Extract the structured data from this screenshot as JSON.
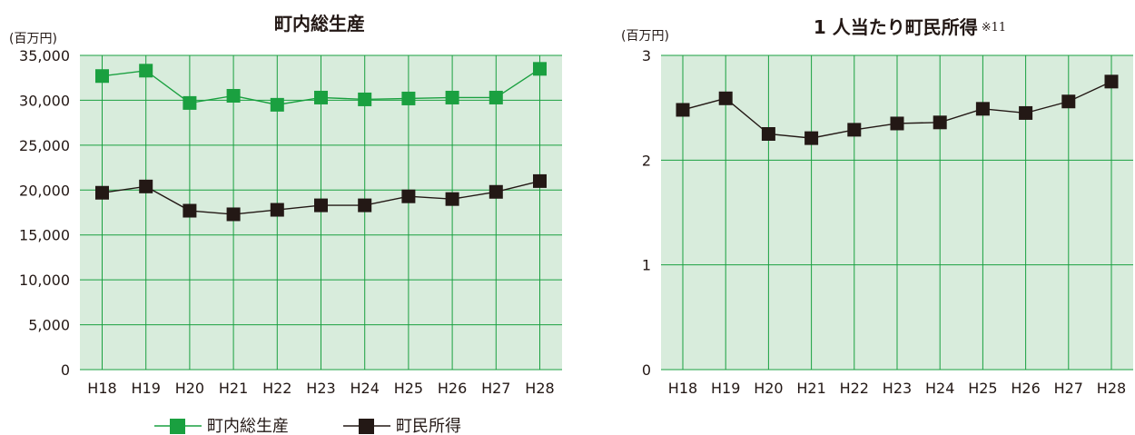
{
  "chart_data": [
    {
      "type": "line",
      "title": "町内総生産",
      "unit_label": "(百万円)",
      "categories": [
        "H18",
        "H19",
        "H20",
        "H21",
        "H22",
        "H23",
        "H24",
        "H25",
        "H26",
        "H27",
        "H28"
      ],
      "ylim": [
        0,
        35000
      ],
      "yticks": [
        0,
        5000,
        10000,
        15000,
        20000,
        25000,
        30000,
        35000
      ],
      "ytick_labels": [
        "0",
        "5,000",
        "10,000",
        "15,000",
        "20,000",
        "25,000",
        "30,000",
        "35,000"
      ],
      "grid": true,
      "legend": "bottom",
      "series": [
        {
          "name": "町内総生産",
          "color": "#1aa040",
          "values": [
            32700,
            33300,
            29700,
            30500,
            29500,
            30300,
            30100,
            30200,
            30300,
            30300,
            33500
          ]
        },
        {
          "name": "町民所得",
          "color": "#231815",
          "values": [
            19700,
            20400,
            17700,
            17300,
            17800,
            18300,
            18300,
            19300,
            19000,
            19800,
            21000
          ]
        }
      ]
    },
    {
      "type": "line",
      "title": "1 人当たり町民所得",
      "title_note": "※11",
      "unit_label": "(百万円)",
      "categories": [
        "H18",
        "H19",
        "H20",
        "H21",
        "H22",
        "H23",
        "H24",
        "H25",
        "H26",
        "H27",
        "H28"
      ],
      "ylim": [
        0,
        3
      ],
      "yticks": [
        0,
        1,
        2,
        3
      ],
      "ytick_labels": [
        "0",
        "1",
        "2",
        "3"
      ],
      "grid": true,
      "series": [
        {
          "color": "#231815",
          "values": [
            2.48,
            2.59,
            2.25,
            2.21,
            2.29,
            2.35,
            2.36,
            2.49,
            2.45,
            2.56,
            2.75
          ]
        }
      ]
    }
  ],
  "colors": {
    "plot_background": "#d8ecdc",
    "grid_line": "#1aa040"
  }
}
